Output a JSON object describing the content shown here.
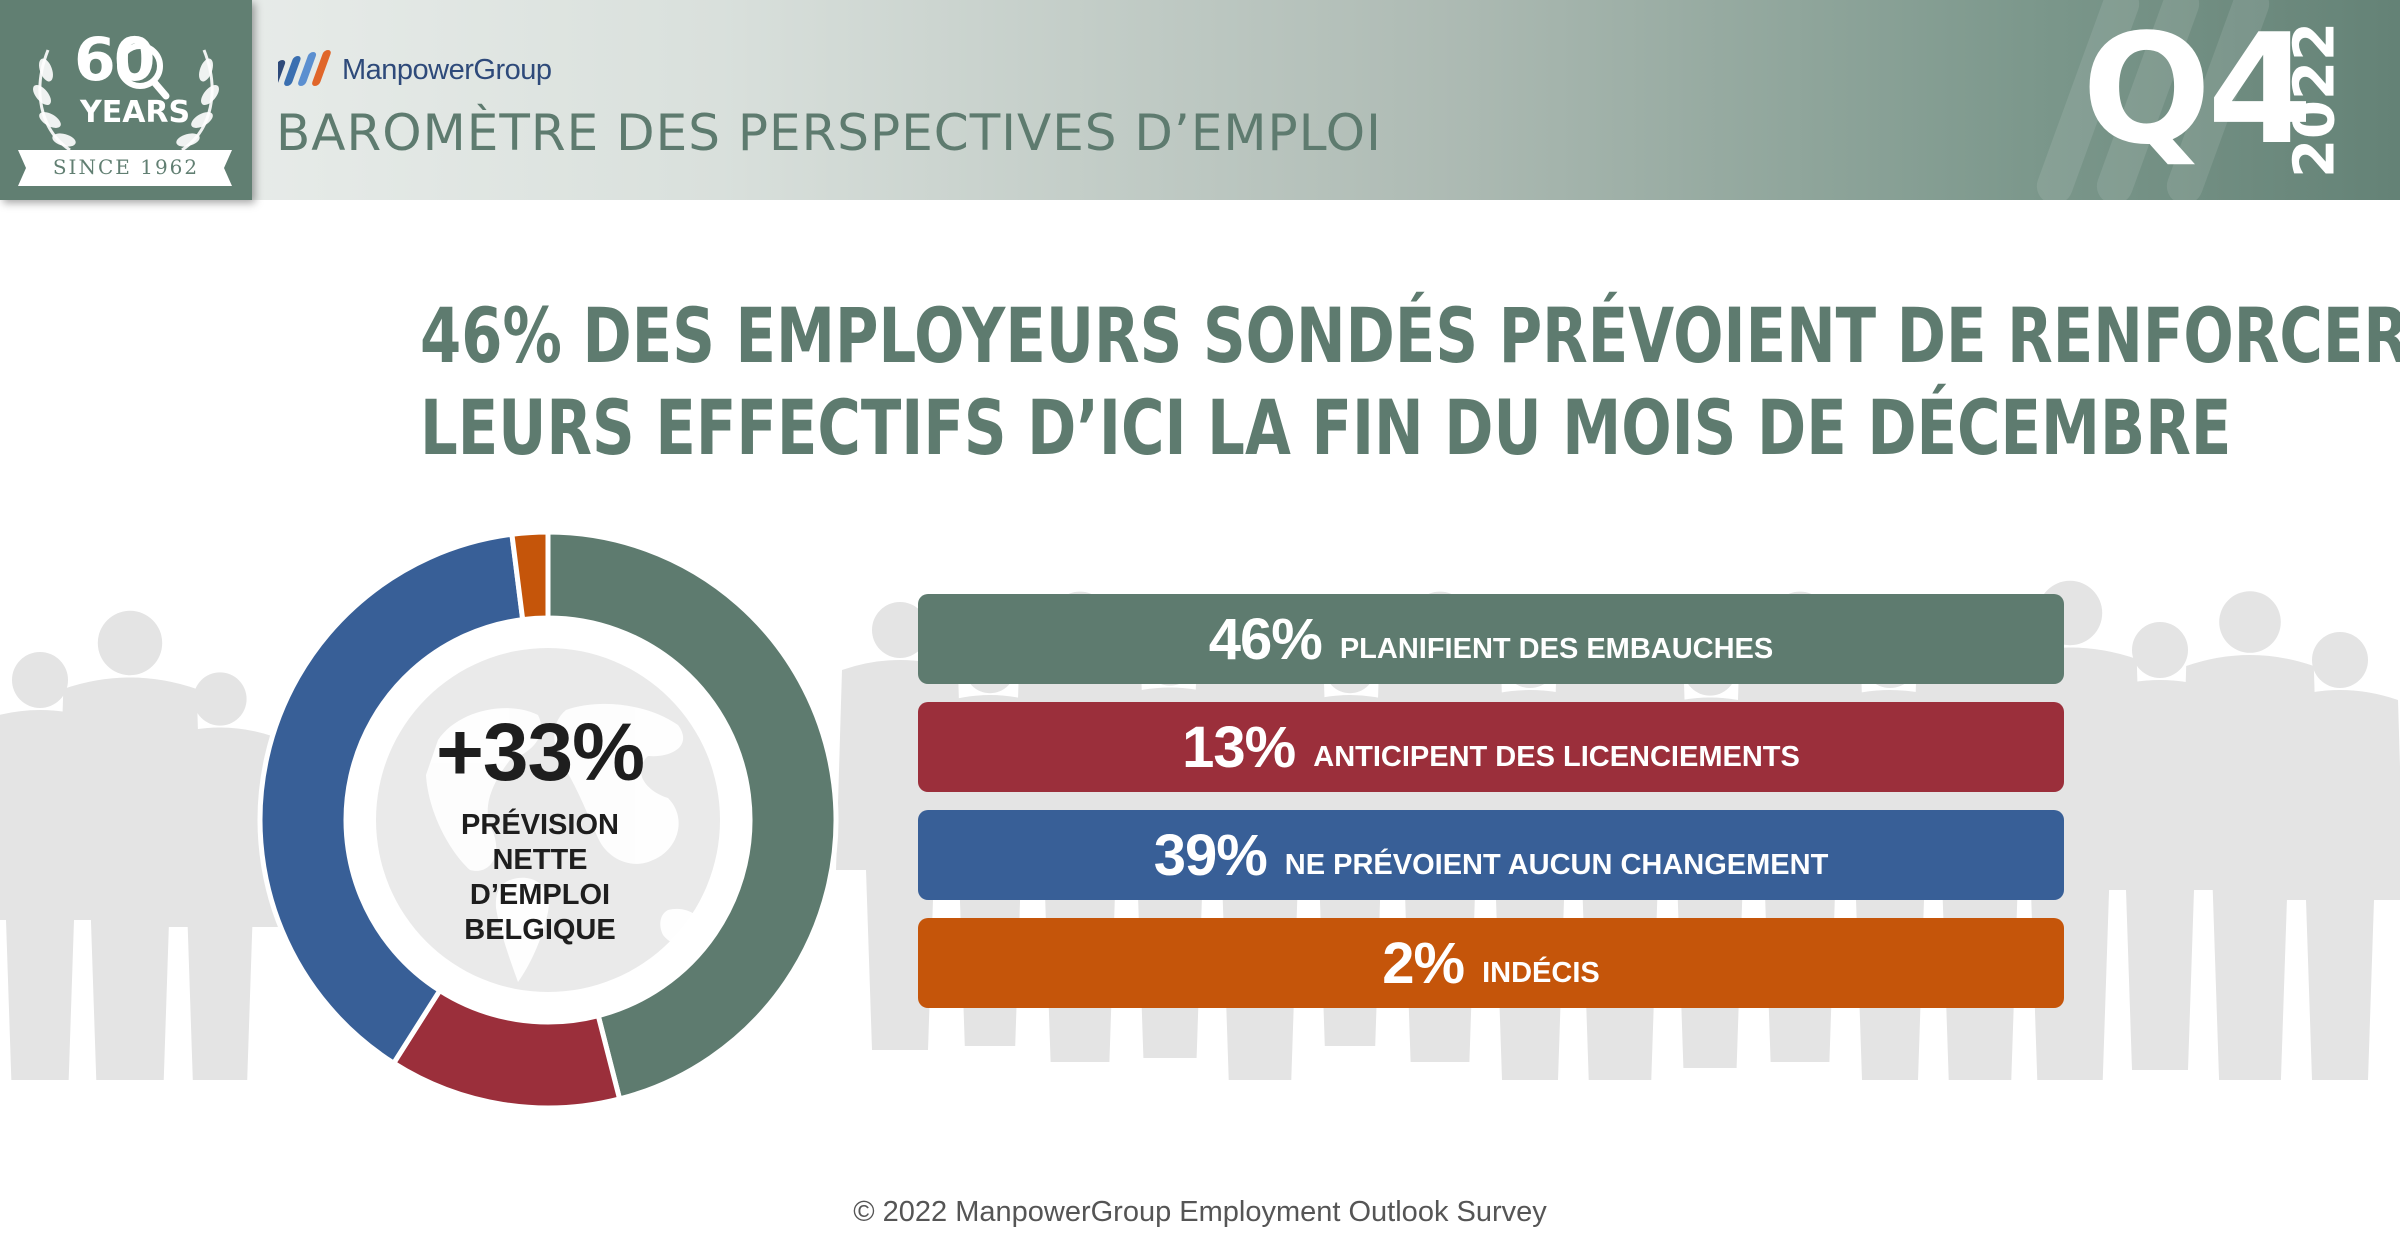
{
  "badge": {
    "number": "60",
    "years": "YEARS",
    "since": "SINCE 1962"
  },
  "brand": {
    "name": "ManpowerGroup"
  },
  "header": {
    "subtitle": "BAROMÈTRE DES PERSPECTIVES D’EMPLOI",
    "quarter": "Q4",
    "year": "2022"
  },
  "headline": {
    "line1": "46% DES EMPLOYEURS SONDÉS PRÉVOIENT DE RENFORCER",
    "line2": "LEURS EFFECTIFS D’ICI LA FIN DU MOIS DE DÉCEMBRE"
  },
  "center": {
    "value": "+33%",
    "label_lines": [
      "PRÉVISION",
      "NETTE",
      "D’EMPLOI",
      "BELGIQUE"
    ]
  },
  "chart_data": {
    "type": "pie",
    "categories": [
      "PLANIFIENT DES EMBAUCHES",
      "ANTICIPENT DES LICENCIEMENTS",
      "NE PRÉVOIENT AUCUN CHANGEMENT",
      "INDÉCIS"
    ],
    "values": [
      46,
      13,
      39,
      2
    ],
    "value_labels": [
      "46%",
      "13%",
      "39%",
      "2%"
    ],
    "colors": [
      "#5e7b6f",
      "#9b2f3b",
      "#385f97",
      "#c5550a"
    ]
  },
  "footer": {
    "text": "© 2022 ManpowerGroup Employment Outlook Survey"
  }
}
